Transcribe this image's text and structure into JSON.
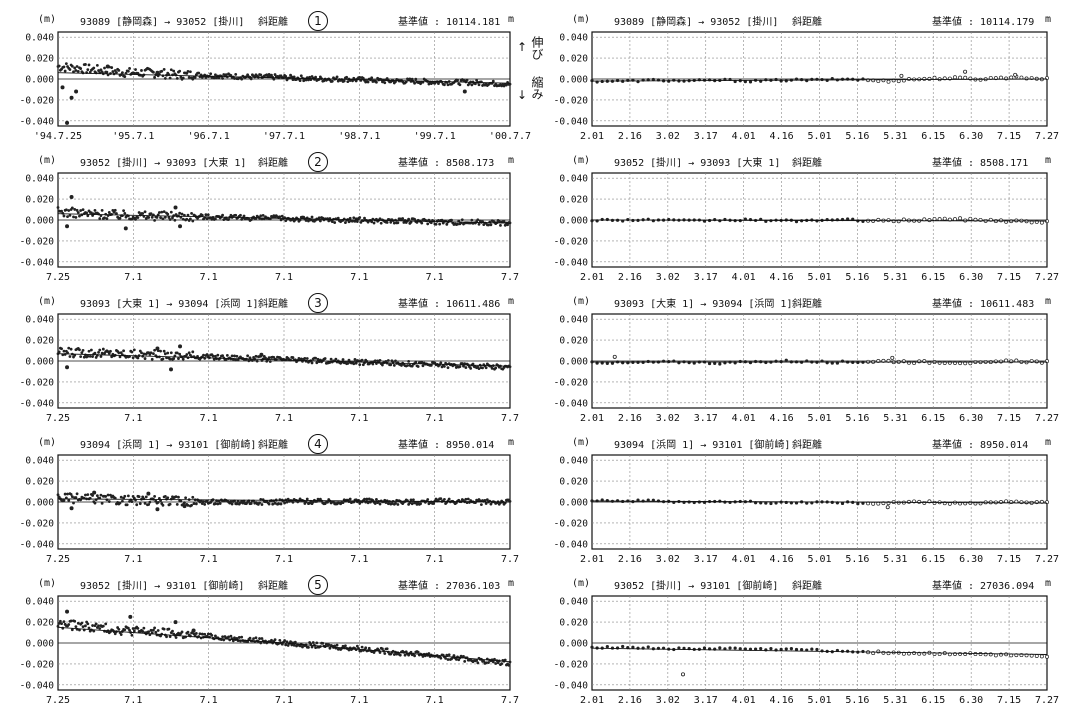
{
  "unit_label": "(m)",
  "meter_label": "m",
  "baseline_prefix": "基準値 :",
  "annotations": {
    "stretch": "伸び",
    "shrink": "縮み",
    "up_arrow": "↑",
    "down_arrow": "↓"
  },
  "left_x_ticks": [
    "'94.7.25",
    "'95.7.1",
    "'96.7.1",
    "'97.7.1",
    "'98.7.1",
    "'99.7.1",
    "'00.7.7"
  ],
  "left_x_ticks_short": [
    "7.25",
    "7.1",
    "7.1",
    "7.1",
    "7.1",
    "7.1",
    "7.7"
  ],
  "right_x_ticks": [
    "2.01",
    "2.16",
    "3.02",
    "3.17",
    "4.01",
    "4.16",
    "5.01",
    "5.16",
    "5.31",
    "6.15",
    "6.30",
    "7.15",
    "7.27"
  ],
  "y_ticks": [
    "0.040",
    "0.020",
    "0.000",
    "-0.020",
    "-0.040"
  ],
  "chart_data": [
    {
      "type": "scatter",
      "route": "93089 [静岡森] → 93052 [掛川]",
      "metric": "斜距離",
      "badge": "①",
      "baseline": "10114.181",
      "x_range": [
        "1994-07-25",
        "2000-07-07"
      ],
      "ylim": [
        -0.045,
        0.045
      ],
      "trend": [
        [
          0,
          0.006
        ],
        [
          0.2,
          0.004
        ],
        [
          0.4,
          0.002
        ],
        [
          0.6,
          0.0
        ],
        [
          0.8,
          -0.002
        ],
        [
          1.0,
          -0.004
        ]
      ],
      "y_values": [
        0.012,
        0.01,
        0.008,
        0.006,
        0.006,
        0.004,
        0.004,
        0.003,
        0.002,
        0.002,
        0.001,
        0.0,
        0.0,
        -0.001,
        -0.002,
        -0.002,
        -0.003,
        -0.003,
        -0.004,
        -0.005
      ],
      "outliers": [
        [
          0.02,
          -0.042
        ],
        [
          0.03,
          -0.018
        ],
        [
          0.04,
          -0.012
        ],
        [
          0.01,
          -0.008
        ],
        [
          0.11,
          0.012
        ],
        [
          0.22,
          0.006
        ],
        [
          0.9,
          -0.012
        ]
      ]
    },
    {
      "type": "scatter",
      "route": "93089 [静岡森] → 93052 [掛川]",
      "metric": "斜距離",
      "baseline": "10114.179",
      "x_range": [
        "2.01",
        "7.27"
      ],
      "ylim": [
        -0.045,
        0.045
      ],
      "trend": [
        [
          0,
          -0.002
        ],
        [
          1,
          0.0
        ]
      ],
      "y_values": [
        -0.002,
        -0.002,
        -0.001,
        -0.002,
        -0.001,
        -0.002,
        -0.001,
        -0.001,
        0.0,
        -0.002,
        0.0,
        0.001,
        0.0,
        0.002,
        0.0
      ],
      "outliers": [
        [
          0.82,
          0.007
        ],
        [
          0.68,
          0.003
        ],
        [
          0.93,
          0.004
        ]
      ]
    },
    {
      "type": "scatter",
      "route": "93052 [掛川] → 93093 [大東 1]",
      "metric": "斜距離",
      "badge": "②",
      "baseline": "8508.173",
      "x_range": [
        "1994-07-25",
        "2000-07-07"
      ],
      "ylim": [
        -0.045,
        0.045
      ],
      "trend": [
        [
          0,
          0.006
        ],
        [
          1,
          -0.003
        ]
      ],
      "y_values": [
        0.008,
        0.006,
        0.005,
        0.004,
        0.004,
        0.003,
        0.002,
        0.002,
        0.001,
        0.0,
        0.0,
        -0.001,
        -0.001,
        -0.002,
        -0.002,
        -0.003
      ],
      "outliers": [
        [
          0.03,
          0.022
        ],
        [
          0.02,
          -0.006
        ],
        [
          0.15,
          -0.008
        ],
        [
          0.26,
          0.012
        ],
        [
          0.27,
          -0.006
        ]
      ]
    },
    {
      "type": "scatter",
      "route": "93052 [掛川] → 93093 [大東 1]",
      "metric": "斜距離",
      "baseline": "8508.171",
      "x_range": [
        "2.01",
        "7.27"
      ],
      "ylim": [
        -0.045,
        0.045
      ],
      "trend": [
        [
          0,
          0.0
        ],
        [
          1,
          -0.001
        ]
      ],
      "y_values": [
        0.0,
        0.0,
        0.0,
        -0.001,
        0.0,
        0.0,
        -0.001,
        0.0,
        0.0,
        -0.001,
        0.0,
        0.001,
        0.0,
        -0.001,
        -0.002
      ],
      "outliers": []
    },
    {
      "type": "scatter",
      "route": "93093 [大東 1] → 93094 [浜岡 1]",
      "metric": "斜距離",
      "badge": "③",
      "baseline": "10611.486",
      "x_range": [
        "1994-07-25",
        "2000-07-07"
      ],
      "ylim": [
        -0.045,
        0.045
      ],
      "trend": [
        [
          0,
          0.007
        ],
        [
          1,
          -0.005
        ]
      ],
      "y_values": [
        0.008,
        0.008,
        0.007,
        0.006,
        0.005,
        0.004,
        0.003,
        0.002,
        0.001,
        0.0,
        -0.001,
        -0.002,
        -0.003,
        -0.004,
        -0.005,
        -0.006
      ],
      "outliers": [
        [
          0.02,
          -0.006
        ],
        [
          0.22,
          0.012
        ],
        [
          0.25,
          -0.008
        ],
        [
          0.27,
          0.014
        ],
        [
          0.45,
          0.006
        ]
      ]
    },
    {
      "type": "scatter",
      "route": "93093 [大東 1] → 93094 [浜岡 1]",
      "metric": "斜距離",
      "baseline": "10611.483",
      "x_range": [
        "2.01",
        "7.27"
      ],
      "ylim": [
        -0.045,
        0.045
      ],
      "trend": [
        [
          0,
          -0.001
        ],
        [
          1,
          -0.001
        ]
      ],
      "y_values": [
        -0.001,
        -0.002,
        -0.001,
        -0.001,
        -0.002,
        -0.001,
        0.0,
        -0.001,
        -0.001,
        0.0,
        -0.001,
        -0.001,
        -0.002,
        0.0,
        -0.001
      ],
      "outliers": [
        [
          0.05,
          0.004
        ],
        [
          0.66,
          0.003
        ]
      ]
    },
    {
      "type": "scatter",
      "route": "93094 [浜岡 1] → 93101 [御前崎]",
      "metric": "斜距離",
      "badge": "④",
      "baseline": "8950.014",
      "x_range": [
        "1994-07-25",
        "2000-07-07"
      ],
      "ylim": [
        -0.045,
        0.045
      ],
      "trend": [
        [
          0,
          0.003
        ],
        [
          1,
          0.0
        ]
      ],
      "y_values": [
        0.004,
        0.003,
        0.002,
        0.001,
        0.001,
        0.0,
        0.0,
        0.0,
        0.001,
        0.0,
        0.001,
        0.0,
        0.0,
        0.001,
        0.0,
        0.0
      ],
      "outliers": [
        [
          0.03,
          -0.006
        ],
        [
          0.2,
          0.008
        ],
        [
          0.22,
          -0.007
        ],
        [
          0.28,
          -0.004
        ],
        [
          0.08,
          0.009
        ]
      ]
    },
    {
      "type": "scatter",
      "route": "93094 [浜岡 1] → 93101 [御前崎]",
      "metric": "斜距離",
      "baseline": "8950.014",
      "x_range": [
        "2.01",
        "7.27"
      ],
      "ylim": [
        -0.045,
        0.045
      ],
      "trend": [
        [
          0,
          0.001
        ],
        [
          1,
          -0.001
        ]
      ],
      "y_values": [
        0.002,
        0.001,
        0.001,
        0.0,
        0.0,
        0.0,
        -0.001,
        0.0,
        -0.001,
        -0.001,
        0.0,
        -0.001,
        -0.001,
        0.0,
        -0.001
      ],
      "outliers": [
        [
          0.65,
          -0.005
        ]
      ]
    },
    {
      "type": "scatter",
      "route": "93052 [掛川] → 93101 [御前崎]",
      "metric": "斜距離",
      "badge": "⑤",
      "baseline": "27036.103",
      "x_range": [
        "1994-07-25",
        "2000-07-07"
      ],
      "ylim": [
        -0.045,
        0.045
      ],
      "trend": [
        [
          0,
          0.015
        ],
        [
          0.5,
          0.0
        ],
        [
          1,
          -0.018
        ]
      ],
      "y_values": [
        0.018,
        0.016,
        0.013,
        0.011,
        0.009,
        0.007,
        0.005,
        0.003,
        0.0,
        -0.002,
        -0.004,
        -0.006,
        -0.009,
        -0.011,
        -0.014,
        -0.017,
        -0.019
      ],
      "outliers": [
        [
          0.02,
          0.03
        ],
        [
          0.16,
          0.025
        ],
        [
          0.26,
          0.02
        ],
        [
          0.3,
          0.012
        ]
      ]
    },
    {
      "type": "scatter",
      "route": "93052 [掛川] → 93101 [御前崎]",
      "metric": "斜距離",
      "baseline": "27036.094",
      "x_range": [
        "2.01",
        "7.27"
      ],
      "ylim": [
        -0.045,
        0.045
      ],
      "trend": [
        [
          0,
          -0.005
        ],
        [
          1,
          -0.011
        ]
      ],
      "y_values": [
        -0.004,
        -0.004,
        -0.005,
        -0.006,
        -0.005,
        -0.006,
        -0.006,
        -0.007,
        -0.008,
        -0.009,
        -0.01,
        -0.01,
        -0.011,
        -0.012,
        -0.014
      ],
      "outliers": [
        [
          0.2,
          -0.03
        ]
      ]
    }
  ]
}
